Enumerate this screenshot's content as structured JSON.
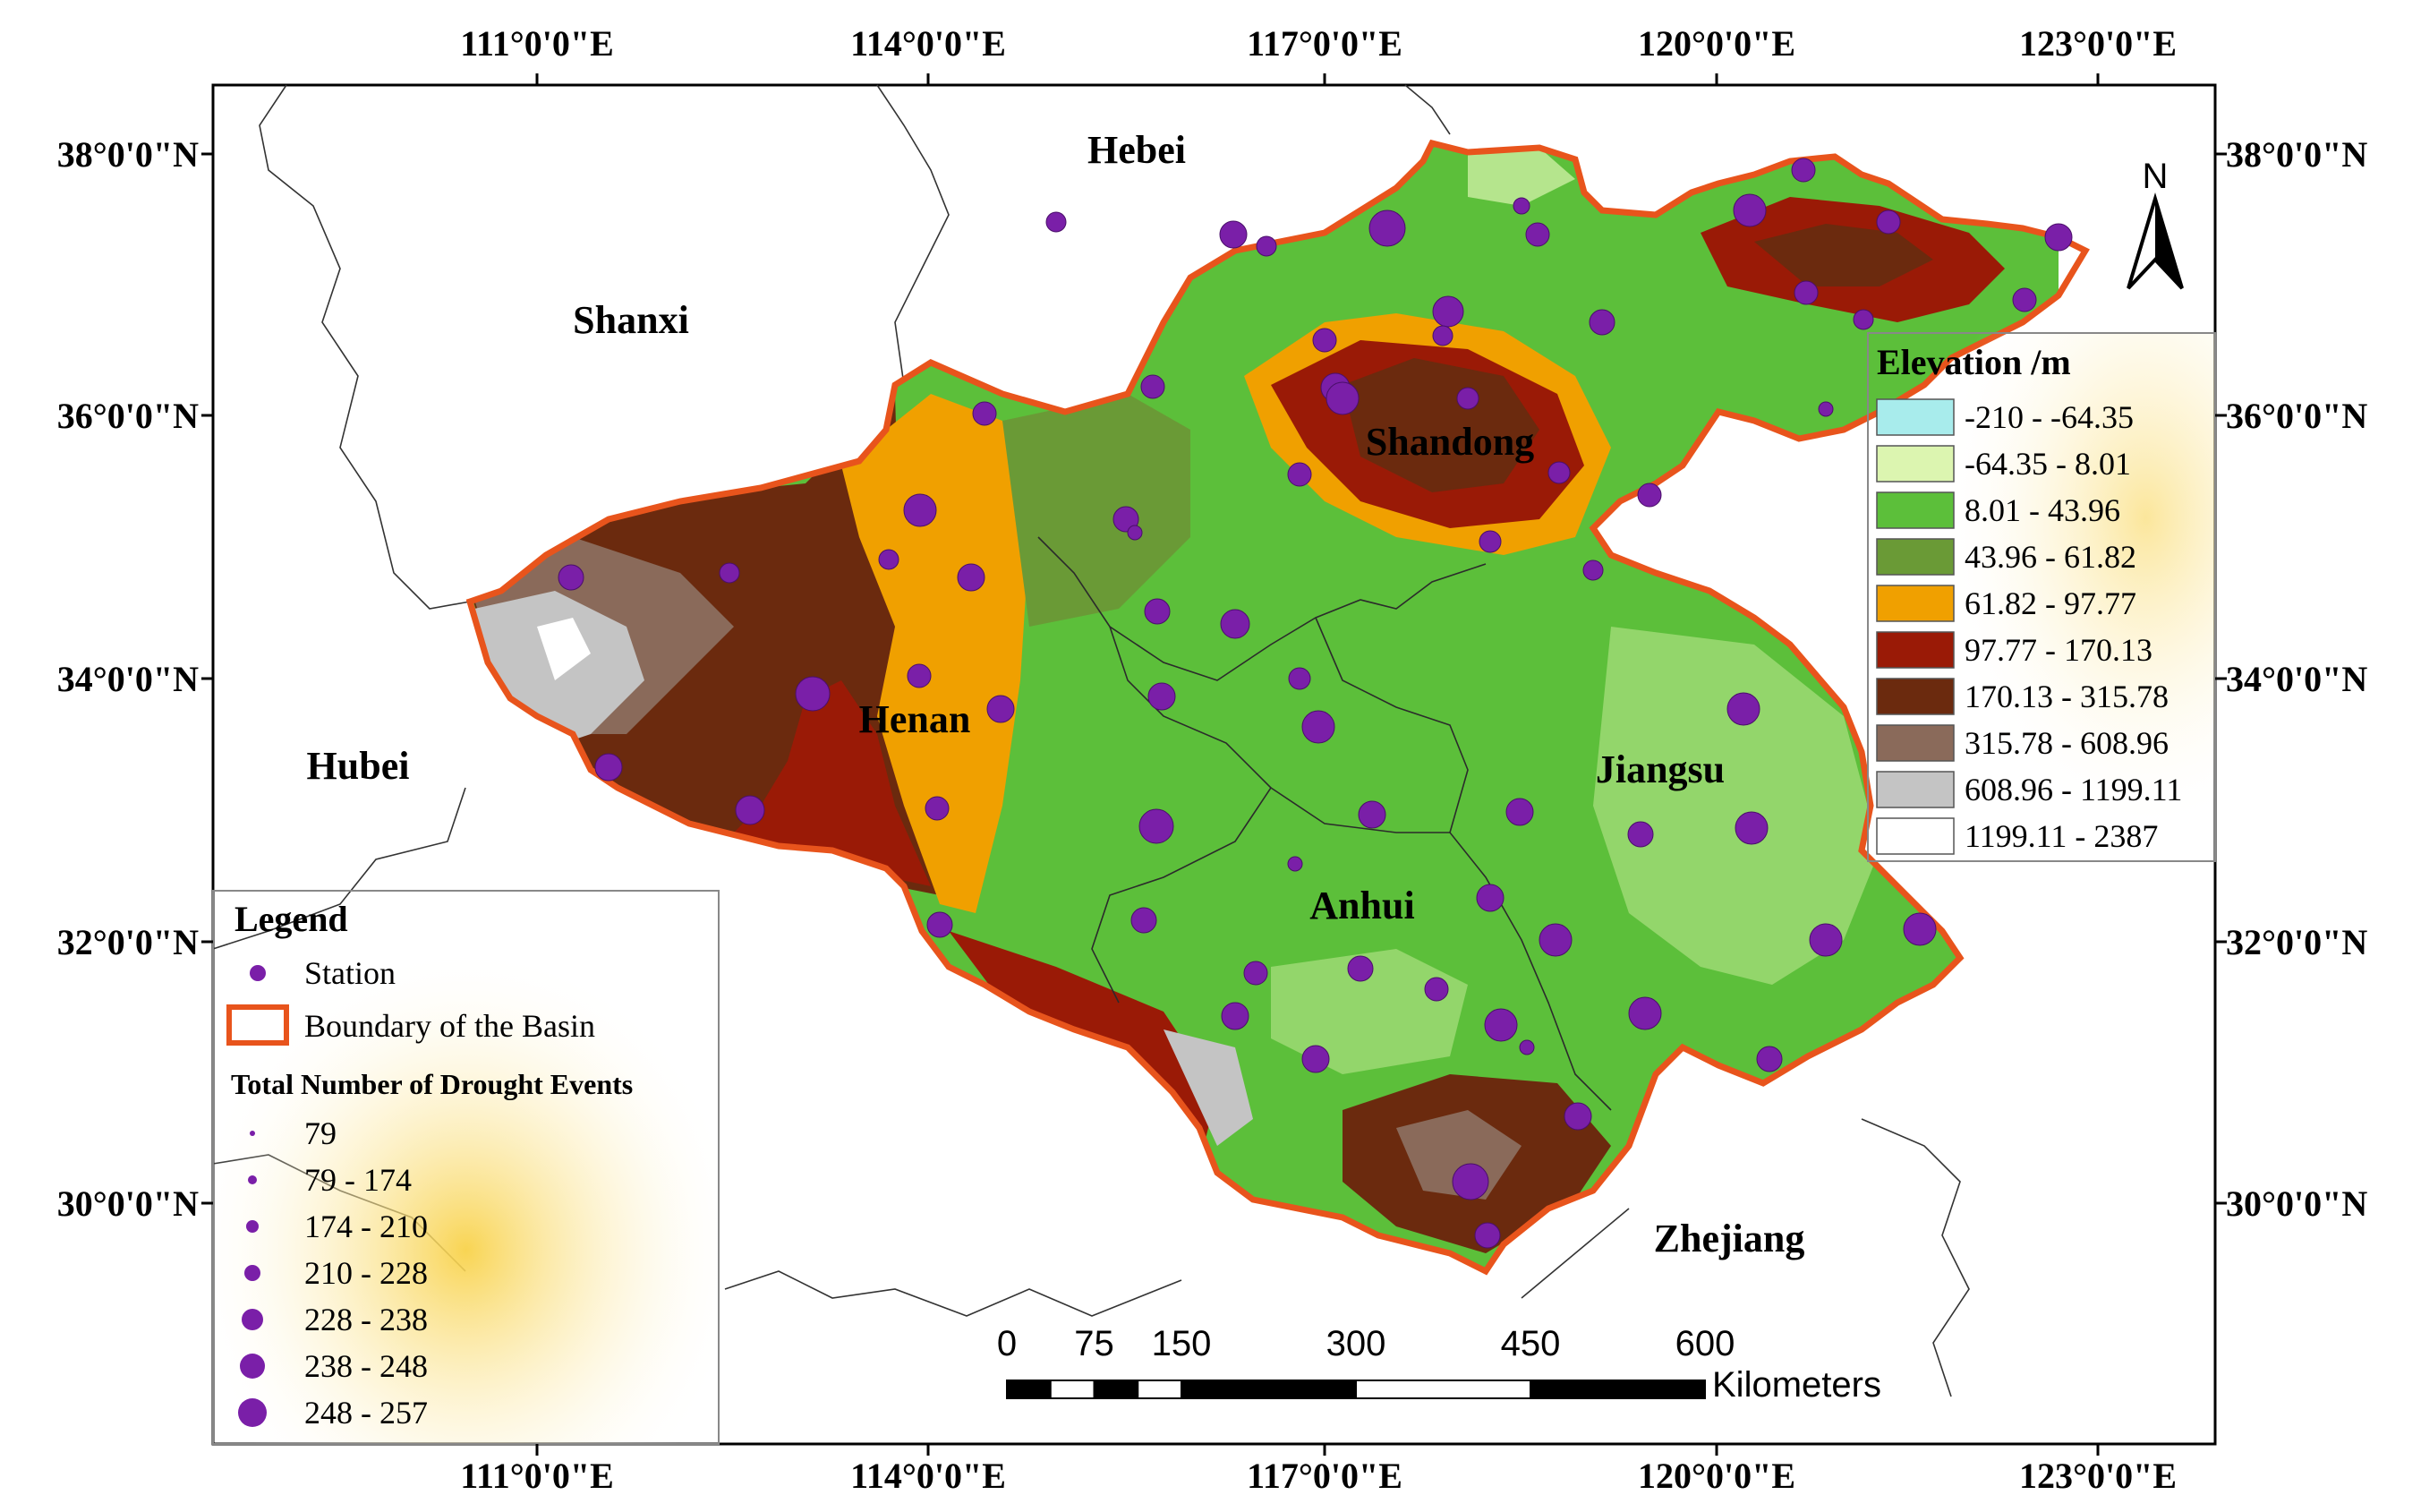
{
  "map": {
    "lon_ticks": [
      "111°0'0\"E",
      "114°0'0\"E",
      "117°0'0\"E",
      "120°0'0\"E",
      "123°0'0\"E"
    ],
    "lat_ticks": [
      "38°0'0\"N",
      "36°0'0\"N",
      "34°0'0\"N",
      "32°0'0\"N",
      "30°0'0\"N"
    ],
    "provinces": [
      "Hebei",
      "Shanxi",
      "Shandong",
      "Henan",
      "Hubei",
      "Jiangsu",
      "Anhui",
      "Zhejiang"
    ],
    "north_arrow": "N"
  },
  "elevation_legend": {
    "title": "Elevation /m",
    "classes": [
      {
        "label": "-210 - -64.35",
        "color": "#a8ecec"
      },
      {
        "label": "-64.35 - 8.01",
        "color": "#dcf5b0"
      },
      {
        "label": "8.01 - 43.96",
        "color": "#5cbf3a"
      },
      {
        "label": "43.96 - 61.82",
        "color": "#6a9a36"
      },
      {
        "label": "61.82 - 97.77",
        "color": "#f0a000"
      },
      {
        "label": "97.77 - 170.13",
        "color": "#9a1a06"
      },
      {
        "label": "170.13 - 315.78",
        "color": "#6b2a0e"
      },
      {
        "label": "315.78 - 608.96",
        "color": "#8a6a5a"
      },
      {
        "label": "608.96 - 1199.11",
        "color": "#c4c4c4"
      },
      {
        "label": "1199.11 - 2387",
        "color": "#ffffff"
      }
    ]
  },
  "legend": {
    "title": "Legend",
    "station_label": "Station",
    "boundary_label": "Boundary of the Basin",
    "drought_title": "Total Number of Drought Events",
    "drought_classes": [
      "79",
      "79 - 174",
      "174 - 210",
      "210 - 228",
      "228 - 238",
      "238 - 248",
      "248 - 257"
    ]
  },
  "scale_bar": {
    "ticks": [
      "0",
      "75",
      "150",
      "300",
      "450",
      "600"
    ],
    "unit": "Kilometers"
  },
  "colors": {
    "station": "#7a1fa8",
    "boundary": "#e8541c",
    "legend_glow": "#f8d24a"
  }
}
